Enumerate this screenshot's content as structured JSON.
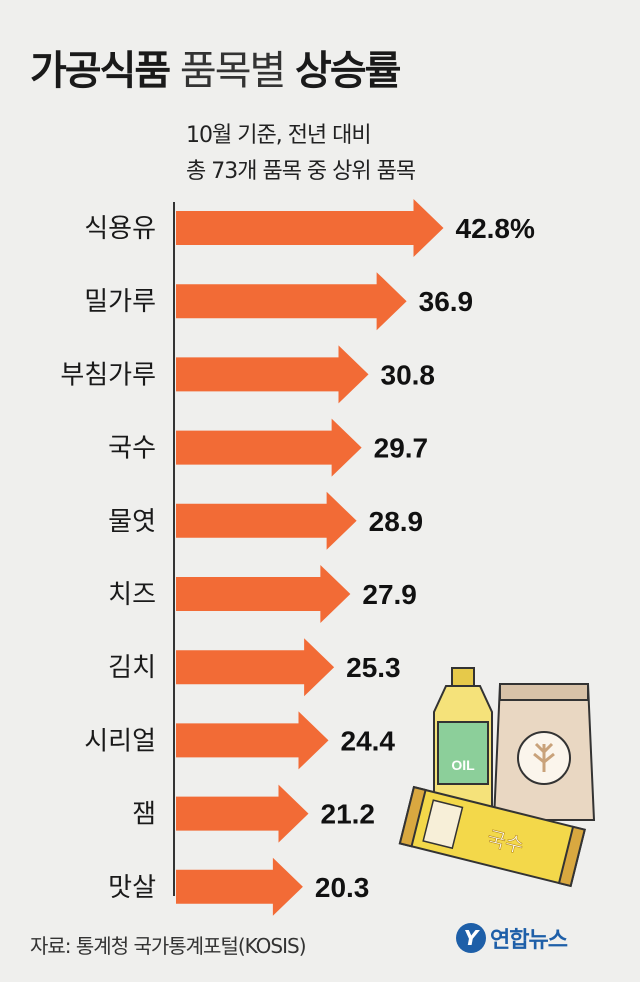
{
  "title": {
    "part1": "가공식품",
    "part2": "품목별",
    "part3": "상승률"
  },
  "subtitle": {
    "line1": "10월 기준, 전년 대비",
    "line2": "총 73개 품목 중 상위 품목"
  },
  "chart_data": {
    "type": "bar",
    "orientation": "horizontal",
    "categories": [
      "식용유",
      "밀가루",
      "부침가루",
      "국수",
      "물엿",
      "치즈",
      "김치",
      "시리얼",
      "잼",
      "맛살"
    ],
    "values": [
      42.8,
      36.9,
      30.8,
      29.7,
      28.9,
      27.9,
      25.3,
      24.4,
      21.2,
      20.3
    ],
    "value_labels": [
      "42.8%",
      "36.9",
      "30.8",
      "29.7",
      "28.9",
      "27.9",
      "25.3",
      "24.4",
      "21.2",
      "20.3"
    ],
    "bar_color": "#f26b36",
    "unit": "%"
  },
  "illustration": {
    "oil_label": "OIL",
    "noodle_label": "국수"
  },
  "source": "자료: 통계청 국가통계포털(KOSIS)",
  "logo": {
    "mark": "Y",
    "text": "연합뉴스",
    "color": "#1e5fa8"
  }
}
